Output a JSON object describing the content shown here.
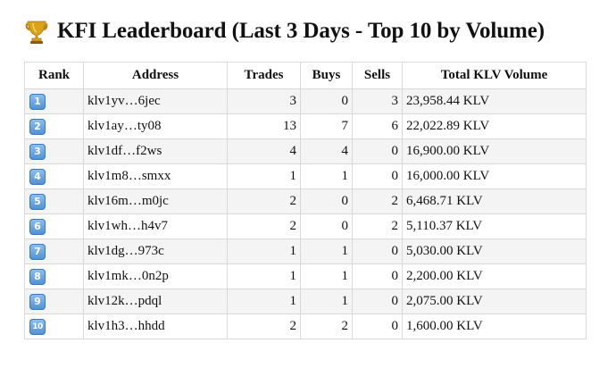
{
  "title": {
    "icon": "trophy-icon",
    "text": "KFI Leaderboard (Last 3 Days - Top 10 by Volume)"
  },
  "table": {
    "headers": {
      "rank": "Rank",
      "address": "Address",
      "trades": "Trades",
      "buys": "Buys",
      "sells": "Sells",
      "volume": "Total KLV Volume"
    },
    "rows": [
      {
        "rank": "1",
        "address": "klv1yv…6jec",
        "trades": "3",
        "buys": "0",
        "sells": "3",
        "volume": "23,958.44 KLV"
      },
      {
        "rank": "2",
        "address": "klv1ay…ty08",
        "trades": "13",
        "buys": "7",
        "sells": "6",
        "volume": "22,022.89 KLV"
      },
      {
        "rank": "3",
        "address": "klv1df…f2ws",
        "trades": "4",
        "buys": "4",
        "sells": "0",
        "volume": "16,900.00 KLV"
      },
      {
        "rank": "4",
        "address": "klv1m8…smxx",
        "trades": "1",
        "buys": "1",
        "sells": "0",
        "volume": "16,000.00 KLV"
      },
      {
        "rank": "5",
        "address": "klv16m…m0jc",
        "trades": "2",
        "buys": "0",
        "sells": "2",
        "volume": "6,468.71 KLV"
      },
      {
        "rank": "6",
        "address": "klv1wh…h4v7",
        "trades": "2",
        "buys": "0",
        "sells": "2",
        "volume": "5,110.37 KLV"
      },
      {
        "rank": "7",
        "address": "klv1dg…973c",
        "trades": "1",
        "buys": "1",
        "sells": "0",
        "volume": "5,030.00 KLV"
      },
      {
        "rank": "8",
        "address": "klv1mk…0n2p",
        "trades": "1",
        "buys": "1",
        "sells": "0",
        "volume": "2,200.00 KLV"
      },
      {
        "rank": "9",
        "address": "klv12k…pdql",
        "trades": "1",
        "buys": "1",
        "sells": "0",
        "volume": "2,075.00 KLV"
      },
      {
        "rank": "10",
        "address": "klv1h3…hhdd",
        "trades": "2",
        "buys": "2",
        "sells": "0",
        "volume": "1,600.00 KLV"
      }
    ]
  },
  "colors": {
    "badge": "#5b9be0",
    "row_alt": "#f4f4f4",
    "border": "#d9d9d9",
    "trophy": "#d9a21b"
  }
}
